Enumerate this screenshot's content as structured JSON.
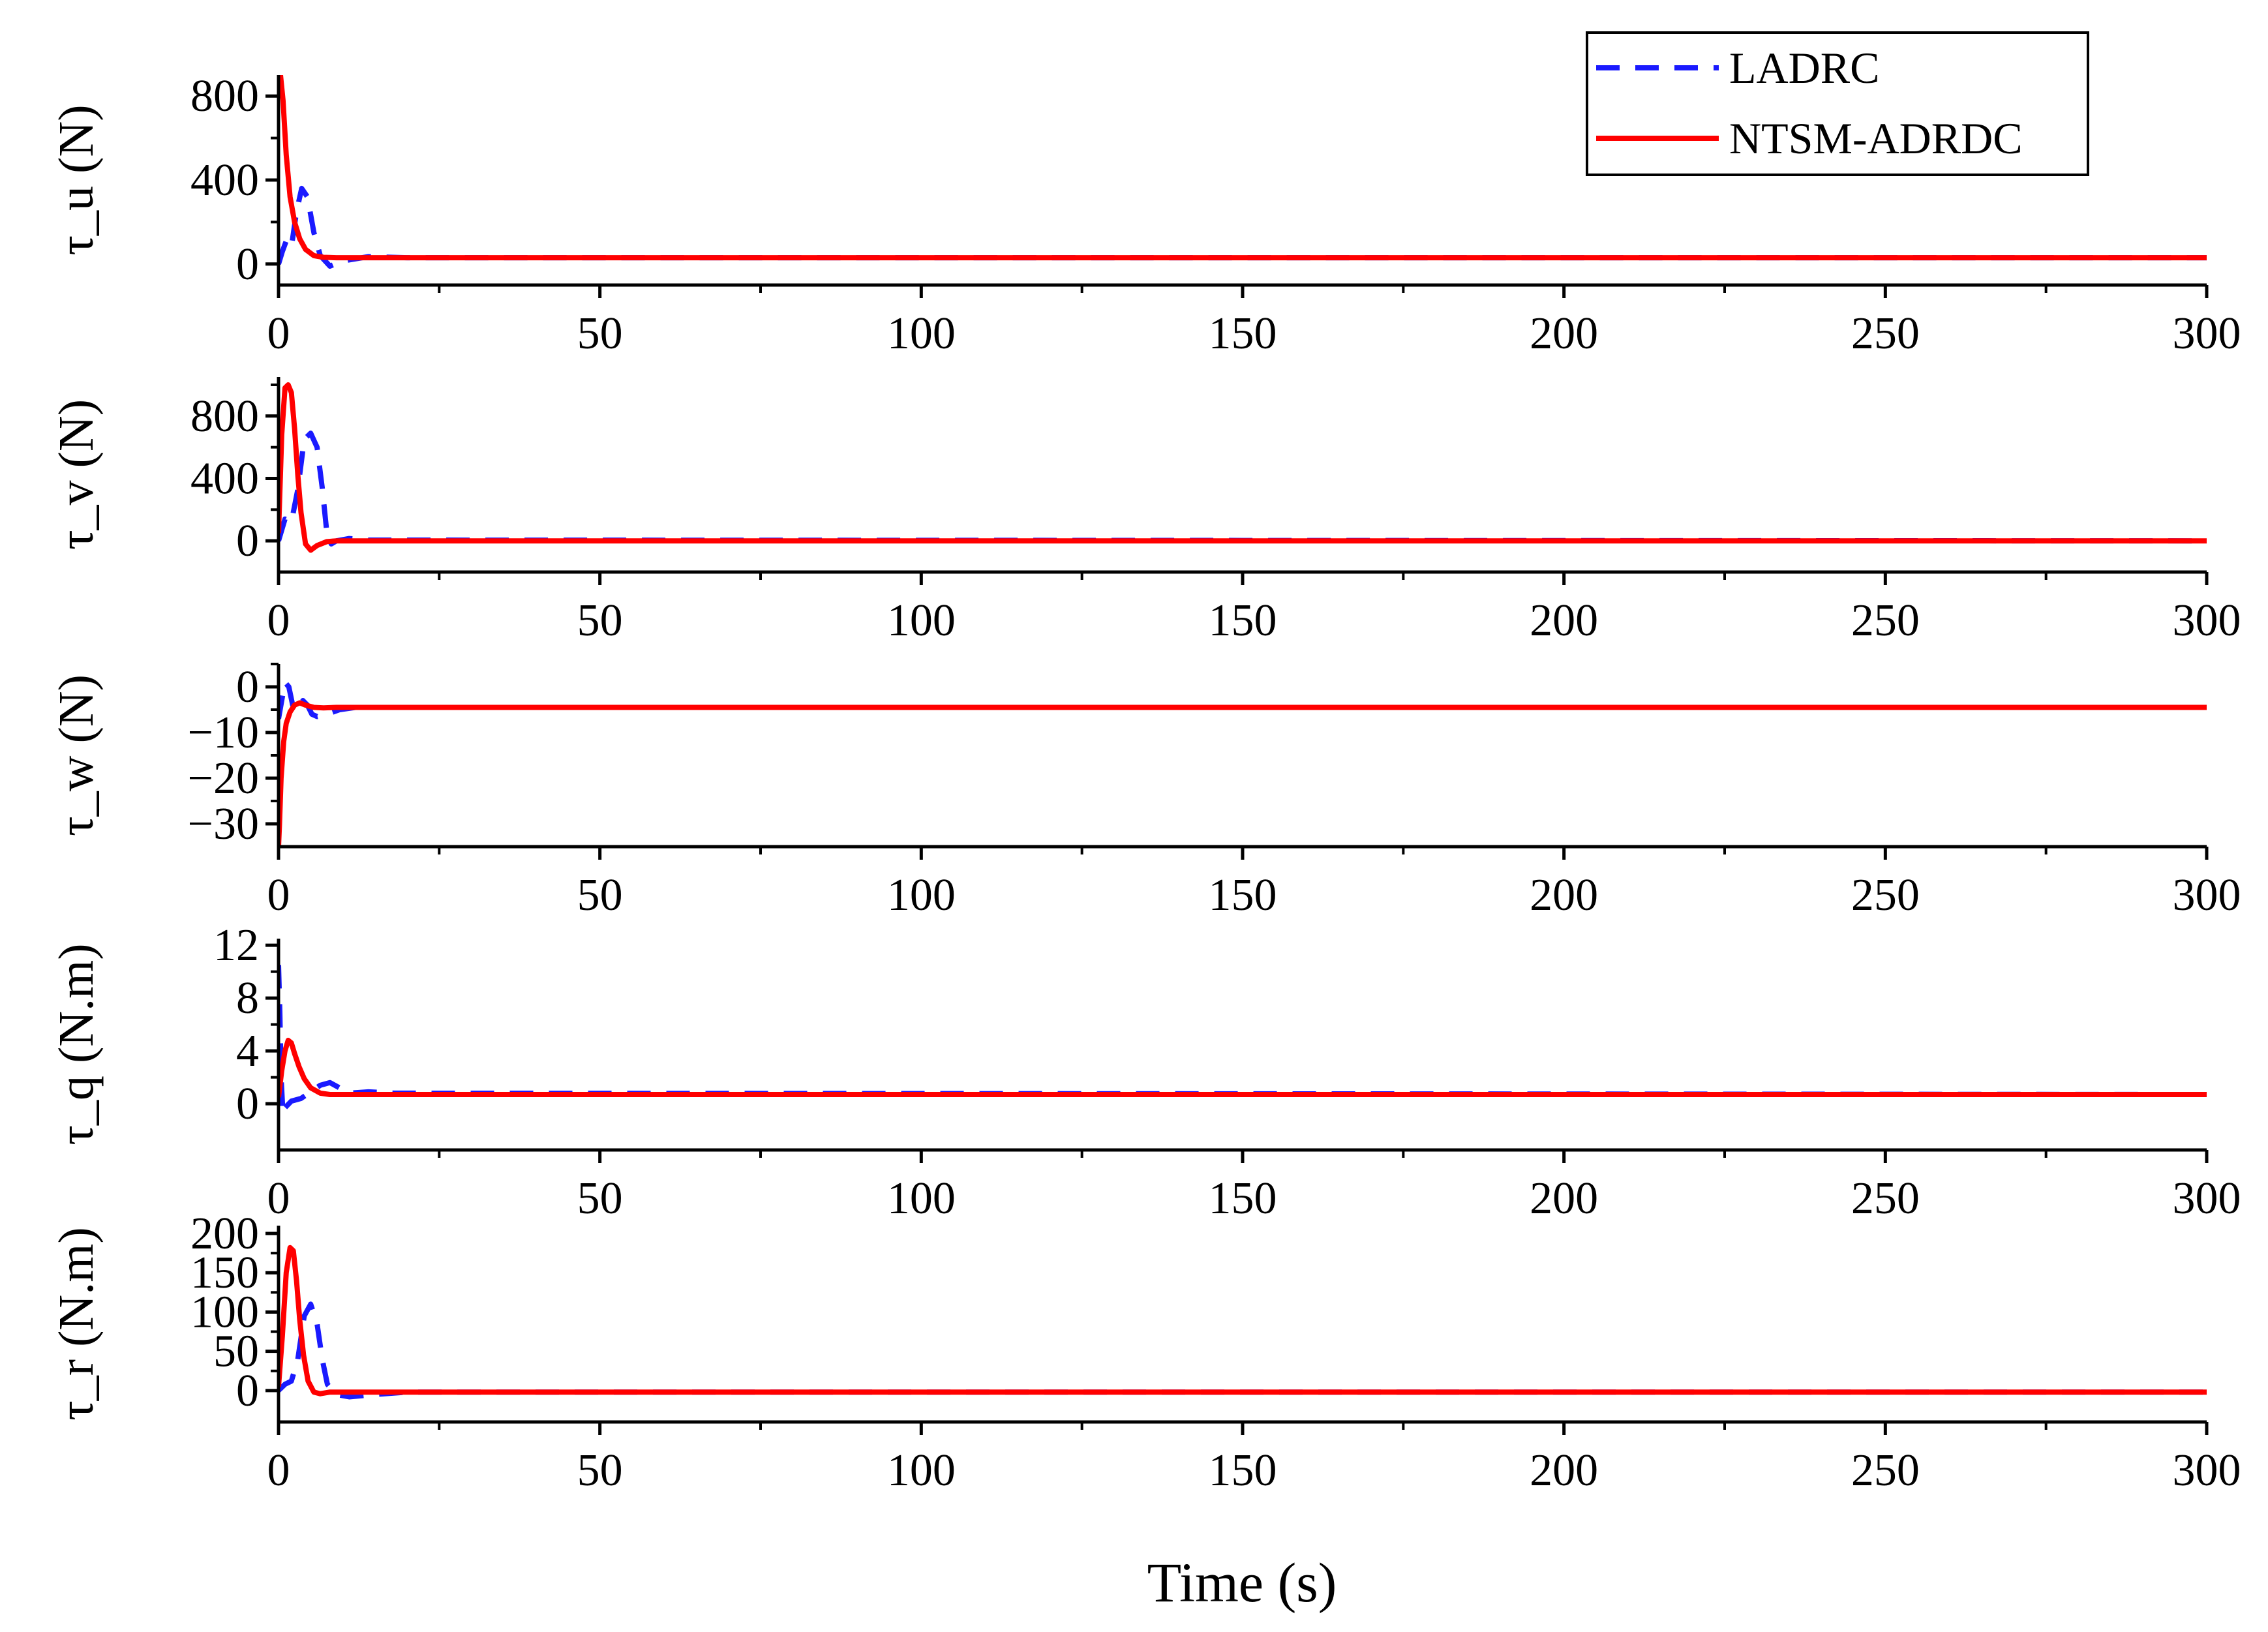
{
  "xlabel": "Time (s)",
  "legend": {
    "placement": "top-right",
    "entries": [
      {
        "label": "LADRC",
        "color": "#1a1aff",
        "dash": "dashed"
      },
      {
        "label": "NTSM-ADRDC",
        "color": "#ff0000",
        "dash": "solid"
      }
    ]
  },
  "chart_data": [
    {
      "type": "line",
      "ylabel": "τ_u (N)",
      "xlim": [
        0,
        300
      ],
      "ylim": [
        -100,
        900
      ],
      "xticks": [
        0,
        50,
        100,
        150,
        200,
        250,
        300
      ],
      "yticks": [
        0,
        400,
        800
      ],
      "series": [
        {
          "name": "LADRC",
          "x": [
            0,
            0.6,
            1.2,
            2,
            2.8,
            3.6,
            4.5,
            5.5,
            6.5,
            8,
            10,
            14,
            20,
            300
          ],
          "y": [
            0,
            60,
            110,
            80,
            250,
            360,
            320,
            150,
            40,
            -10,
            15,
            35,
            30,
            30
          ]
        },
        {
          "name": "NTSM-ADRDC",
          "x": [
            0,
            0.3,
            0.7,
            1.2,
            1.8,
            2.5,
            3.3,
            4.2,
            5.5,
            7,
            9,
            12,
            300
          ],
          "y": [
            800,
            900,
            780,
            520,
            320,
            200,
            120,
            70,
            40,
            32,
            30,
            30,
            30
          ]
        }
      ]
    },
    {
      "type": "line",
      "ylabel": "τ_v (N)",
      "xlim": [
        0,
        300
      ],
      "ylim": [
        -200,
        1050
      ],
      "xticks": [
        0,
        50,
        100,
        150,
        200,
        250,
        300
      ],
      "yticks": [
        0,
        400,
        800
      ],
      "series": [
        {
          "name": "LADRC",
          "x": [
            0,
            1,
            2,
            3,
            4,
            5,
            6,
            6.8,
            7.5,
            8.2,
            9,
            11,
            14,
            300
          ],
          "y": [
            0,
            140,
            120,
            330,
            650,
            690,
            600,
            340,
            60,
            -20,
            0,
            15,
            5,
            0
          ]
        },
        {
          "name": "NTSM-ADRDC",
          "x": [
            0,
            0.5,
            1,
            1.5,
            2,
            2.5,
            3,
            3.5,
            4.2,
            5,
            6,
            7.5,
            9,
            300
          ],
          "y": [
            50,
            680,
            980,
            1000,
            950,
            720,
            420,
            180,
            -20,
            -60,
            -30,
            -5,
            0,
            0
          ]
        }
      ]
    },
    {
      "type": "line",
      "ylabel": "τ_w (N)",
      "xlim": [
        0,
        300
      ],
      "ylim": [
        -35,
        5
      ],
      "xticks": [
        0,
        50,
        100,
        150,
        200,
        250,
        300
      ],
      "yticks": [
        -30,
        -20,
        -10,
        0
      ],
      "series": [
        {
          "name": "LADRC",
          "x": [
            0,
            0.5,
            1,
            1.6,
            2.2,
            3,
            3.8,
            4.5,
            5.2,
            6,
            7.5,
            9.5,
            12,
            300
          ],
          "y": [
            -7,
            -3,
            1,
            0,
            -4,
            -5,
            -3,
            -4,
            -6,
            -6.5,
            -6,
            -5,
            -4.5,
            -4.5
          ]
        },
        {
          "name": "NTSM-ADRDC",
          "x": [
            0,
            0.15,
            0.4,
            0.8,
            1.2,
            1.8,
            2.5,
            3.3,
            4.2,
            5.5,
            7,
            9,
            300
          ],
          "y": [
            -35,
            -30,
            -20,
            -12,
            -8,
            -5.5,
            -4,
            -3.5,
            -4,
            -4.5,
            -4.6,
            -4.5,
            -4.5
          ]
        }
      ]
    },
    {
      "type": "line",
      "ylabel": "τ_q (N.m)",
      "xlim": [
        0,
        300
      ],
      "ylim": [
        -3.5,
        12.5
      ],
      "xticks": [
        0,
        50,
        100,
        150,
        200,
        250,
        300
      ],
      "yticks": [
        0,
        4,
        8,
        12
      ],
      "series": [
        {
          "name": "LADRC",
          "x": [
            0,
            0.2,
            0.4,
            0.7,
            1,
            2,
            3.5,
            5,
            6.5,
            8,
            9.5,
            11,
            14,
            18,
            300
          ],
          "y": [
            10.5,
            7,
            2,
            -0.8,
            -0.3,
            0.2,
            0.4,
            0.9,
            1.4,
            1.6,
            1.2,
            0.8,
            0.9,
            0.8,
            0.7
          ]
        },
        {
          "name": "NTSM-ADRDC",
          "x": [
            0,
            0.5,
            1,
            1.5,
            2,
            2.5,
            3.2,
            4,
            5,
            6.5,
            8,
            10,
            300
          ],
          "y": [
            0.5,
            2.5,
            4,
            4.8,
            4.6,
            3.8,
            2.8,
            1.9,
            1.2,
            0.8,
            0.7,
            0.7,
            0.7
          ]
        }
      ]
    },
    {
      "type": "line",
      "ylabel": "τ_r (N.m)",
      "xlim": [
        0,
        300
      ],
      "ylim": [
        -40,
        210
      ],
      "xticks": [
        0,
        50,
        100,
        150,
        200,
        250,
        300
      ],
      "yticks": [
        0,
        50,
        100,
        150,
        200
      ],
      "series": [
        {
          "name": "LADRC",
          "x": [
            0,
            1,
            2,
            3,
            4,
            5,
            6,
            6.8,
            7.6,
            9,
            11,
            15,
            20,
            300
          ],
          "y": [
            0,
            8,
            12,
            40,
            95,
            110,
            85,
            40,
            8,
            -5,
            -8,
            -5,
            -2,
            -2
          ]
        },
        {
          "name": "NTSM-ADRDC",
          "x": [
            0,
            0.6,
            1.2,
            1.8,
            2.3,
            2.8,
            3.3,
            3.9,
            4.6,
            5.5,
            6.5,
            8,
            10,
            300
          ],
          "y": [
            5,
            70,
            150,
            182,
            178,
            140,
            90,
            45,
            12,
            -2,
            -4,
            -2,
            -2,
            -2
          ]
        }
      ]
    }
  ]
}
